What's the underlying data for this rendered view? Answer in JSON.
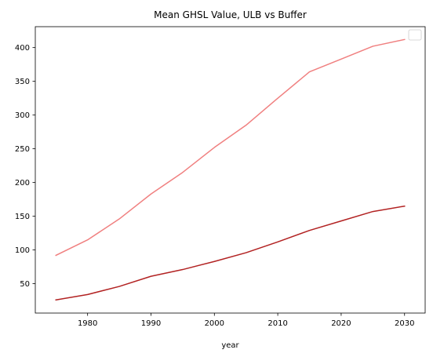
{
  "chart_data": {
    "type": "line",
    "title": "Mean GHSL Value, ULB vs Buffer",
    "xlabel": "year",
    "ylabel": "",
    "x": [
      1975,
      1980,
      1985,
      1990,
      1995,
      2000,
      2005,
      2010,
      2015,
      2020,
      2025,
      2030
    ],
    "xlim": [
      1971.75,
      2033.25
    ],
    "ylim": [
      6.5,
      431
    ],
    "xticks": [
      1980,
      1990,
      2000,
      2010,
      2020,
      2030
    ],
    "yticks": [
      50,
      100,
      150,
      200,
      250,
      300,
      350,
      400
    ],
    "grid": false,
    "legend": "top-right",
    "series": [
      {
        "color": "#f08080",
        "values": [
          92,
          115,
          146,
          183,
          215,
          252,
          285,
          325,
          364,
          383,
          402,
          412
        ]
      },
      {
        "color": "#b22222",
        "values": [
          26,
          34,
          46,
          61,
          71,
          83,
          96,
          112,
          129,
          143,
          157,
          165
        ]
      }
    ]
  }
}
